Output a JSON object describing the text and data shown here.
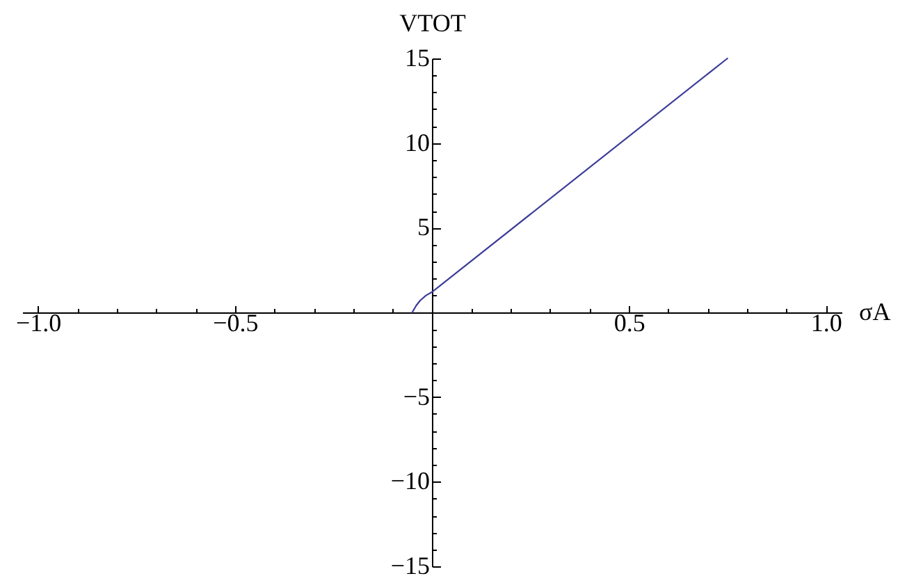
{
  "chart_data": {
    "type": "line",
    "xlabel": "σA",
    "ylabel": "VTOT",
    "x": [
      -0.05,
      -0.04,
      -0.03,
      -0.015,
      0,
      0.75
    ],
    "series": [
      {
        "color": "#3d3d99",
        "values": [
          0,
          0.4,
          0.7,
          1.0,
          1.2,
          15
        ]
      }
    ],
    "xlim": [
      -1.04,
      1.04
    ],
    "ylim": [
      -15,
      15
    ],
    "xticks": [
      {
        "value": -1,
        "label": "−1.0"
      },
      {
        "value": -0.9,
        "label": null
      },
      {
        "value": -0.8,
        "label": null
      },
      {
        "value": -0.7,
        "label": null
      },
      {
        "value": -0.6,
        "label": null
      },
      {
        "value": -0.5,
        "label": "−0.5"
      },
      {
        "value": -0.4,
        "label": null
      },
      {
        "value": -0.3,
        "label": null
      },
      {
        "value": -0.2,
        "label": null
      },
      {
        "value": -0.1,
        "label": null
      },
      {
        "value": 0.1,
        "label": null
      },
      {
        "value": 0.2,
        "label": null
      },
      {
        "value": 0.3,
        "label": null
      },
      {
        "value": 0.4,
        "label": null
      },
      0.5,
      {
        "value": 0.6,
        "label": null
      },
      {
        "value": 0.7,
        "label": null
      },
      {
        "value": 0.8,
        "label": null
      },
      {
        "value": 0.9,
        "label": null
      },
      {
        "value": 1,
        "label": "1.0"
      }
    ],
    "yticks": [
      {
        "value": -15,
        "label": "−15"
      },
      {
        "value": -14,
        "label": null
      },
      {
        "value": -13,
        "label": null
      },
      {
        "value": -12,
        "label": null
      },
      {
        "value": -11,
        "label": null
      },
      {
        "value": -10,
        "label": "−10"
      },
      {
        "value": -9,
        "label": null
      },
      {
        "value": -8,
        "label": null
      },
      {
        "value": -7,
        "label": null
      },
      {
        "value": -6,
        "label": null
      },
      {
        "value": -5,
        "label": "−5"
      },
      {
        "value": -4,
        "label": null
      },
      {
        "value": -3,
        "label": null
      },
      {
        "value": -2,
        "label": null
      },
      {
        "value": -1,
        "label": null
      },
      {
        "value": 1,
        "label": null
      },
      {
        "value": 2,
        "label": null
      },
      {
        "value": 3,
        "label": null
      },
      {
        "value": 4,
        "label": null
      },
      5,
      {
        "value": 6,
        "label": null
      },
      {
        "value": 7,
        "label": null
      },
      {
        "value": 8,
        "label": null
      },
      {
        "value": 9,
        "label": null
      },
      10,
      {
        "value": 11,
        "label": null
      },
      {
        "value": 12,
        "label": null
      },
      {
        "value": 13,
        "label": null
      },
      {
        "value": 14,
        "label": null
      },
      15
    ]
  }
}
